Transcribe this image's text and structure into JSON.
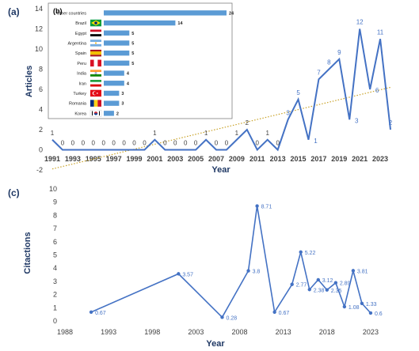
{
  "chart_data": [
    {
      "id": "a",
      "panel_label": "(a)",
      "type": "line",
      "xlabel": "Year",
      "ylabel": "Articles",
      "ylim": [
        -2,
        14
      ],
      "xlim": [
        1991,
        2024
      ],
      "y_ticks": [
        -2,
        0,
        2,
        4,
        6,
        8,
        10,
        12,
        14
      ],
      "x_ticks": [
        1991,
        1993,
        1995,
        1997,
        1999,
        2001,
        2003,
        2005,
        2007,
        2009,
        2011,
        2013,
        2015,
        2017,
        2019,
        2021,
        2023
      ],
      "x": [
        1991,
        1992,
        1993,
        1994,
        1995,
        1996,
        1997,
        1998,
        1999,
        2000,
        2001,
        2002,
        2003,
        2004,
        2005,
        2006,
        2007,
        2008,
        2009,
        2010,
        2011,
        2012,
        2013,
        2014,
        2015,
        2016,
        2017,
        2018,
        2019,
        2020,
        2021,
        2022,
        2023,
        2024
      ],
      "values": [
        1,
        0,
        0,
        0,
        0,
        0,
        0,
        0,
        0,
        0,
        1,
        0,
        0,
        0,
        0,
        1,
        0,
        0,
        1,
        2,
        0,
        1,
        0,
        3,
        5,
        1,
        7,
        8,
        9,
        3,
        12,
        6,
        11,
        2
      ],
      "trendline": {
        "style": "dotted",
        "color": "#c9a227",
        "from": [
          1991,
          -1.9
        ],
        "to": [
          2024,
          6.2
        ]
      },
      "color": "#4472c4",
      "grid": false
    },
    {
      "id": "b",
      "panel_label": "(b)",
      "type": "bar",
      "orientation": "horizontal",
      "categories": [
        "Other countries",
        "Brazil",
        "Egypt",
        "Argentina",
        "Spain",
        "Peru",
        "India",
        "Iran",
        "Turkey",
        "Romania",
        "Korea"
      ],
      "values": [
        24,
        14,
        5,
        5,
        5,
        5,
        4,
        4,
        3,
        3,
        2
      ],
      "flags": [
        "",
        "brazil-flag-icon",
        "egypt-flag-icon",
        "argentina-flag-icon",
        "spain-flag-icon",
        "peru-flag-icon",
        "india-flag-icon",
        "iran-flag-icon",
        "turkey-flag-icon",
        "romania-flag-icon",
        "korea-flag-icon"
      ],
      "color": "#5b9bd5"
    },
    {
      "id": "c",
      "panel_label": "(c)",
      "type": "line",
      "xlabel": "Year",
      "ylabel": "Citactions",
      "ylim": [
        0,
        10
      ],
      "xlim": [
        1988,
        2025
      ],
      "y_ticks": [
        0,
        1,
        2,
        3,
        4,
        5,
        6,
        7,
        8,
        9,
        10
      ],
      "x_ticks": [
        1988,
        1993,
        1998,
        2003,
        2008,
        2013,
        2018,
        2023
      ],
      "points": [
        {
          "x": 1991,
          "y": 0.67,
          "label": "0.67"
        },
        {
          "x": 2001,
          "y": 3.57,
          "label": "3.57"
        },
        {
          "x": 2006,
          "y": 0.28,
          "label": "0.28"
        },
        {
          "x": 2009,
          "y": 3.8,
          "label": "3.8"
        },
        {
          "x": 2010,
          "y": 8.71,
          "label": "8.71"
        },
        {
          "x": 2012,
          "y": 0.67,
          "label": "0.67"
        },
        {
          "x": 2014,
          "y": 2.77,
          "label": "2.77"
        },
        {
          "x": 2015,
          "y": 5.22,
          "label": "5.22"
        },
        {
          "x": 2016,
          "y": 2.38,
          "label": "2.38"
        },
        {
          "x": 2017,
          "y": 3.12,
          "label": "3.12"
        },
        {
          "x": 2018,
          "y": 2.35,
          "label": "2.35"
        },
        {
          "x": 2019,
          "y": 2.89,
          "label": "2.89"
        },
        {
          "x": 2020,
          "y": 1.08,
          "label": "1.08"
        },
        {
          "x": 2021,
          "y": 3.81,
          "label": "3.81"
        },
        {
          "x": 2022,
          "y": 1.33,
          "label": "1.33"
        },
        {
          "x": 2023,
          "y": 0.6,
          "label": "0.6"
        }
      ],
      "color": "#4472c4",
      "grid": false
    }
  ]
}
